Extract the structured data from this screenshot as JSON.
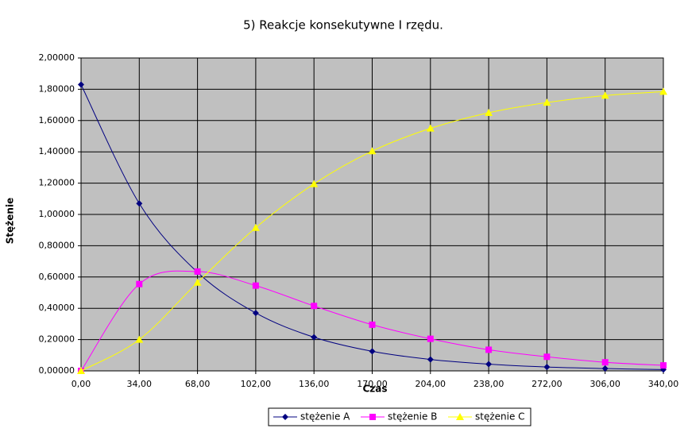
{
  "chart_data": {
    "type": "line",
    "title": "5) Reakcje konsekutywne I rzędu.",
    "x_label": "Czas",
    "y_label": "Stężenie",
    "x": [
      0,
      34,
      68,
      102,
      136,
      170,
      204,
      238,
      272,
      306,
      340
    ],
    "series": [
      {
        "name": "stężenie A",
        "color": "#000080",
        "marker": "diamond",
        "values": [
          1.83,
          1.07,
          0.63,
          0.37,
          0.215,
          0.125,
          0.073,
          0.043,
          0.025,
          0.015,
          0.008
        ]
      },
      {
        "name": "stężenie B",
        "color": "#ff00ff",
        "marker": "square",
        "values": [
          0,
          0.555,
          0.635,
          0.545,
          0.415,
          0.295,
          0.205,
          0.135,
          0.09,
          0.055,
          0.035
        ]
      },
      {
        "name": "stężenie C",
        "color": "#ffff00",
        "marker": "triangle",
        "values": [
          0,
          0.2,
          0.565,
          0.915,
          1.195,
          1.405,
          1.55,
          1.65,
          1.715,
          1.76,
          1.785
        ]
      }
    ],
    "xlim": [
      0,
      340
    ],
    "xticks": [
      {
        "value": 0,
        "label": "0,00"
      },
      {
        "value": 34,
        "label": "34,00"
      },
      {
        "value": 68,
        "label": "68,00"
      },
      {
        "value": 102,
        "label": "102,00"
      },
      {
        "value": 136,
        "label": "136,00"
      },
      {
        "value": 170,
        "label": "170,00"
      },
      {
        "value": 204,
        "label": "204,00"
      },
      {
        "value": 238,
        "label": "238,00"
      },
      {
        "value": 272,
        "label": "272,00"
      },
      {
        "value": 306,
        "label": "306,00"
      },
      {
        "value": 340,
        "label": "340,00"
      }
    ],
    "ylim": [
      0,
      2
    ],
    "yticks": [
      {
        "value": 0,
        "label": "0,00000"
      },
      {
        "value": 0.2,
        "label": "0,20000"
      },
      {
        "value": 0.4,
        "label": "0,40000"
      },
      {
        "value": 0.6,
        "label": "0,60000"
      },
      {
        "value": 0.8,
        "label": "0,80000"
      },
      {
        "value": 1,
        "label": "1,00000"
      },
      {
        "value": 1.2,
        "label": "1,20000"
      },
      {
        "value": 1.4,
        "label": "1,40000"
      },
      {
        "value": 1.6,
        "label": "1,60000"
      },
      {
        "value": 1.8,
        "label": "1,80000"
      },
      {
        "value": 2,
        "label": "2,00000"
      }
    ],
    "grid": true,
    "legend": "bottom"
  }
}
